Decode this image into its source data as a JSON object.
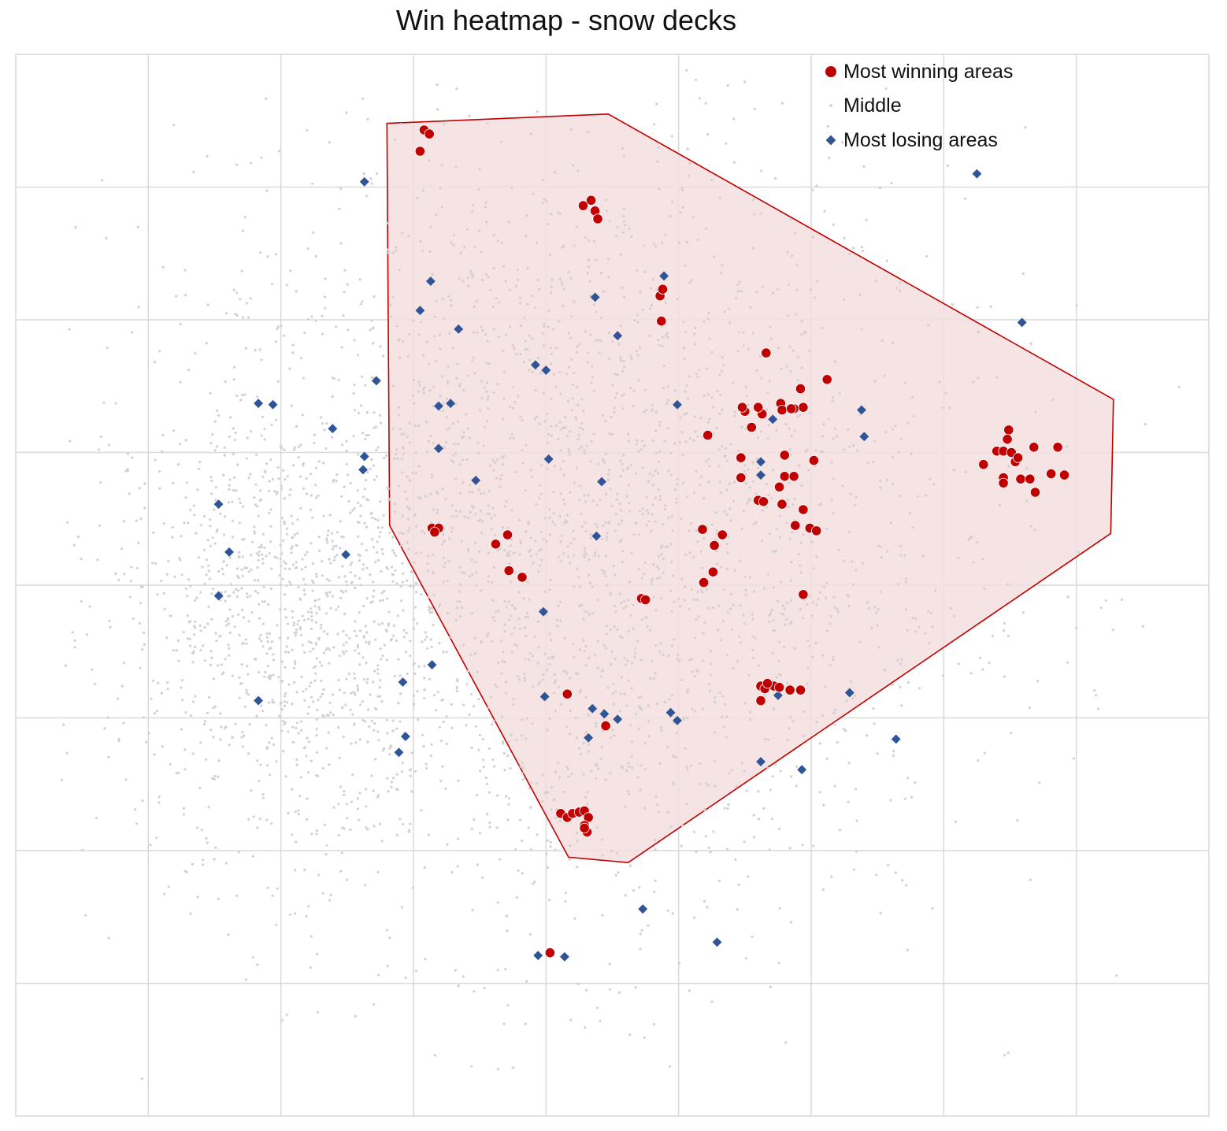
{
  "chart_data": {
    "type": "scatter",
    "title": "Win heatmap - snow decks",
    "xlabel": "",
    "ylabel": "",
    "xlim": [
      0,
      9
    ],
    "ylim": [
      0,
      8
    ],
    "grid": true,
    "legend_position": "top-right",
    "colors": {
      "win": "#c00000",
      "middle": "#d4d0d0",
      "lose": "#2f5597",
      "hull_fill": "#f5dede",
      "grid": "#d9d9d9"
    },
    "series": [
      {
        "name": "Most winning areas",
        "marker": "circle",
        "points": [
          [
            3.08,
            7.43
          ],
          [
            3.05,
            7.27
          ],
          [
            3.12,
            7.4
          ],
          [
            4.28,
            6.86
          ],
          [
            4.34,
            6.9
          ],
          [
            4.37,
            6.82
          ],
          [
            4.39,
            6.76
          ],
          [
            4.86,
            6.18
          ],
          [
            4.87,
            5.99
          ],
          [
            4.88,
            6.23
          ],
          [
            5.66,
            5.75
          ],
          [
            5.92,
            5.48
          ],
          [
            5.94,
            5.34
          ],
          [
            5.87,
            5.33
          ],
          [
            6.12,
            5.55
          ],
          [
            5.77,
            5.37
          ],
          [
            5.5,
            5.31
          ],
          [
            5.48,
            5.34
          ],
          [
            5.63,
            5.29
          ],
          [
            5.6,
            5.34
          ],
          [
            5.78,
            5.32
          ],
          [
            5.85,
            5.33
          ],
          [
            5.55,
            5.19
          ],
          [
            5.22,
            5.13
          ],
          [
            5.47,
            4.96
          ],
          [
            5.8,
            4.98
          ],
          [
            6.02,
            4.94
          ],
          [
            5.8,
            4.82
          ],
          [
            5.87,
            4.82
          ],
          [
            5.76,
            4.74
          ],
          [
            5.47,
            4.81
          ],
          [
            5.6,
            4.64
          ],
          [
            5.78,
            4.61
          ],
          [
            5.64,
            4.63
          ],
          [
            5.94,
            4.57
          ],
          [
            5.88,
            4.45
          ],
          [
            5.99,
            4.43
          ],
          [
            6.04,
            4.41
          ],
          [
            5.18,
            4.42
          ],
          [
            5.33,
            4.38
          ],
          [
            5.27,
            4.3
          ],
          [
            5.26,
            4.1
          ],
          [
            5.19,
            4.02
          ],
          [
            5.94,
            3.93
          ],
          [
            4.72,
            3.9
          ],
          [
            4.75,
            3.89
          ],
          [
            3.14,
            4.43
          ],
          [
            3.19,
            4.43
          ],
          [
            3.16,
            4.4
          ],
          [
            3.62,
            4.31
          ],
          [
            3.71,
            4.38
          ],
          [
            3.72,
            4.11
          ],
          [
            3.82,
            4.06
          ],
          [
            5.62,
            3.24
          ],
          [
            5.65,
            3.22
          ],
          [
            5.72,
            3.24
          ],
          [
            5.67,
            3.26
          ],
          [
            5.76,
            3.23
          ],
          [
            5.84,
            3.21
          ],
          [
            5.92,
            3.21
          ],
          [
            5.62,
            3.13
          ],
          [
            4.16,
            3.18
          ],
          [
            4.45,
            2.94
          ],
          [
            4.11,
            2.28
          ],
          [
            4.16,
            2.25
          ],
          [
            4.2,
            2.28
          ],
          [
            4.25,
            2.29
          ],
          [
            4.29,
            2.3
          ],
          [
            4.32,
            2.25
          ],
          [
            4.29,
            2.19
          ],
          [
            4.31,
            2.14
          ],
          [
            4.29,
            2.17
          ],
          [
            4.03,
            1.23
          ],
          [
            7.49,
            5.17
          ],
          [
            7.48,
            5.1
          ],
          [
            7.4,
            5.01
          ],
          [
            7.45,
            5.01
          ],
          [
            7.51,
            5.0
          ],
          [
            7.68,
            5.04
          ],
          [
            7.86,
            5.04
          ],
          [
            7.3,
            4.91
          ],
          [
            7.54,
            4.93
          ],
          [
            7.56,
            4.96
          ],
          [
            7.45,
            4.81
          ],
          [
            7.45,
            4.77
          ],
          [
            7.58,
            4.8
          ],
          [
            7.65,
            4.8
          ],
          [
            7.81,
            4.84
          ],
          [
            7.91,
            4.83
          ],
          [
            7.69,
            4.7
          ]
        ]
      },
      {
        "name": "Middle",
        "marker": "dot",
        "count": 3600,
        "center_primary": [
          4.2,
          4.3
        ],
        "center_secondary": [
          2.0,
          3.8
        ]
      },
      {
        "name": "Most losing areas",
        "marker": "diamond",
        "points": [
          [
            2.63,
            7.04
          ],
          [
            3.13,
            6.29
          ],
          [
            3.05,
            6.07
          ],
          [
            3.34,
            5.93
          ],
          [
            2.72,
            5.54
          ],
          [
            1.83,
            5.37
          ],
          [
            1.94,
            5.36
          ],
          [
            2.39,
            5.18
          ],
          [
            2.63,
            4.97
          ],
          [
            2.62,
            4.87
          ],
          [
            1.53,
            4.61
          ],
          [
            1.61,
            4.25
          ],
          [
            2.49,
            4.23
          ],
          [
            1.53,
            3.92
          ],
          [
            1.83,
            3.13
          ],
          [
            2.92,
            3.27
          ],
          [
            3.14,
            3.4
          ],
          [
            2.94,
            2.86
          ],
          [
            2.89,
            2.74
          ],
          [
            3.19,
            5.35
          ],
          [
            3.28,
            5.37
          ],
          [
            3.19,
            5.03
          ],
          [
            3.47,
            4.79
          ],
          [
            3.92,
            5.66
          ],
          [
            4.0,
            5.62
          ],
          [
            4.02,
            4.95
          ],
          [
            4.42,
            4.78
          ],
          [
            4.54,
            5.88
          ],
          [
            4.37,
            6.17
          ],
          [
            4.89,
            6.33
          ],
          [
            4.99,
            5.36
          ],
          [
            4.38,
            4.37
          ],
          [
            3.98,
            3.8
          ],
          [
            3.99,
            3.16
          ],
          [
            4.35,
            3.07
          ],
          [
            4.44,
            3.03
          ],
          [
            4.54,
            2.99
          ],
          [
            4.94,
            3.04
          ],
          [
            4.99,
            2.98
          ],
          [
            4.32,
            2.85
          ],
          [
            5.62,
            4.93
          ],
          [
            5.62,
            4.83
          ],
          [
            5.71,
            5.25
          ],
          [
            5.75,
            3.17
          ],
          [
            6.29,
            3.19
          ],
          [
            6.38,
            5.32
          ],
          [
            6.4,
            5.12
          ],
          [
            6.64,
            2.84
          ],
          [
            5.62,
            2.67
          ],
          [
            5.93,
            2.61
          ],
          [
            4.73,
            1.56
          ],
          [
            5.29,
            1.31
          ],
          [
            3.94,
            1.21
          ],
          [
            4.14,
            1.2
          ],
          [
            7.25,
            7.1
          ],
          [
            7.59,
            5.98
          ]
        ]
      }
    ],
    "win_region_outline": [
      [
        2.8,
        7.48
      ],
      [
        4.47,
        7.55
      ],
      [
        8.28,
        5.4
      ],
      [
        8.26,
        4.39
      ],
      [
        4.62,
        1.91
      ],
      [
        4.17,
        1.95
      ],
      [
        2.82,
        4.45
      ]
    ]
  }
}
